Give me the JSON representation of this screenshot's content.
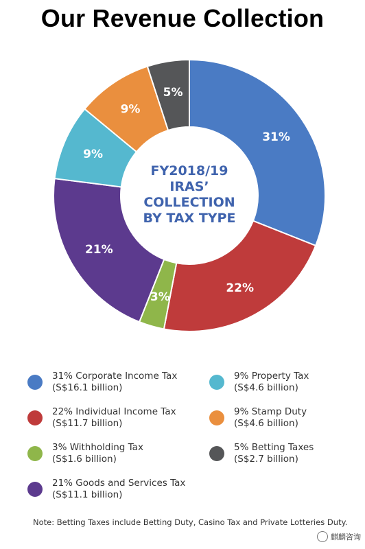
{
  "title": "Our Revenue Collection",
  "center_label": [
    "FY2018/19",
    "IRAS’",
    "COLLECTION",
    "BY TAX TYPE"
  ],
  "chart_data": {
    "type": "pie",
    "slices": [
      {
        "label": "31%",
        "value": 31,
        "color": "#4a7bc4"
      },
      {
        "label": "22%",
        "value": 22,
        "color": "#bf3b3b"
      },
      {
        "label": "3%",
        "value": 3,
        "color": "#8fb64a"
      },
      {
        "label": "21%",
        "value": 21,
        "color": "#5c3a8e"
      },
      {
        "label": "9%",
        "value": 9,
        "color": "#55b8cf"
      },
      {
        "label": "9%",
        "value": 9,
        "color": "#ea8f3e"
      },
      {
        "label": "5%",
        "value": 5,
        "color": "#555658"
      }
    ]
  },
  "legend": [
    {
      "line1": "31% Corporate Income Tax",
      "line2": "(S$16.1 billion)",
      "color": "#4a7bc4"
    },
    {
      "line1": "9% Property Tax",
      "line2": "(S$4.6 billion)",
      "color": "#55b8cf"
    },
    {
      "line1": "22% Individual Income Tax",
      "line2": "(S$11.7 billion)",
      "color": "#bf3b3b"
    },
    {
      "line1": "9% Stamp Duty",
      "line2": "(S$4.6 billion)",
      "color": "#ea8f3e"
    },
    {
      "line1": "3% Withholding Tax",
      "line2": "(S$1.6 billion)",
      "color": "#8fb64a"
    },
    {
      "line1": "5% Betting Taxes",
      "line2": "(S$2.7 billion)",
      "color": "#555658"
    },
    {
      "line1": "21% Goods and Services Tax",
      "line2": "(S$11.1 billion)",
      "color": "#5c3a8e"
    }
  ],
  "note": "Note: Betting Taxes include Betting Duty, Casino Tax and Private Lotteries Duty.",
  "watermark": "麒麟咨询",
  "center_text_color": "#3f63ad"
}
